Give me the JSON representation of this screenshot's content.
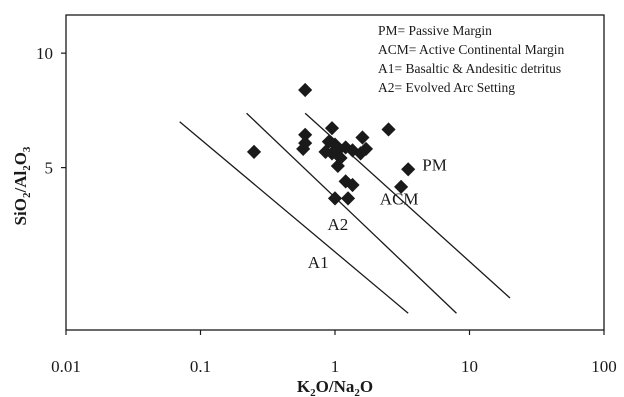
{
  "chart_data": {
    "type": "scatter",
    "title": "",
    "xlabel": {
      "k": "K",
      "sub1": "2",
      "o": "O/Na",
      "sub2": "2",
      "o2": "O"
    },
    "ylabel": {
      "si": "SiO",
      "sub1": "2",
      "al": "/Al",
      "sub2": "2",
      "o": "O",
      "sub3": "3"
    },
    "x_scale": "log",
    "y_scale": "log",
    "xlim": [
      0.01,
      100
    ],
    "ylim": [
      1.87,
      12.6
    ],
    "x_ticks": [
      {
        "value": 0.01,
        "label": "0.01"
      },
      {
        "value": 0.1,
        "label": "0.1"
      },
      {
        "value": 1,
        "label": "1"
      },
      {
        "value": 10,
        "label": "10"
      },
      {
        "value": 100,
        "label": "100"
      }
    ],
    "y_ticks": [
      {
        "value": 5,
        "label": "5"
      },
      {
        "value": 10,
        "label": "10"
      }
    ],
    "legend": [
      "PM= Passive Margin",
      "ACM= Active Continental Margin",
      "A1= Basaltic & Andesitic detritus",
      "A2= Evolved Arc Setting"
    ],
    "legend_position": "top-right",
    "marker_color": "#1a1a1a",
    "line_color": "#1a1a1a",
    "boundaries": [
      {
        "from": [
          0.07,
          6.6
        ],
        "to": [
          3.5,
          2.07
        ]
      },
      {
        "from": [
          0.22,
          6.95
        ],
        "to": [
          8,
          2.07
        ]
      },
      {
        "from": [
          0.6,
          6.95
        ],
        "to": [
          20,
          2.27
        ]
      }
    ],
    "field_labels": [
      {
        "text": "A1",
        "x": 0.75,
        "y": 2.82
      },
      {
        "text": "A2",
        "x": 1.05,
        "y": 3.55
      },
      {
        "text": "ACM",
        "x": 3.0,
        "y": 4.15
      },
      {
        "text": "PM",
        "x": 5.5,
        "y": 5.1
      }
    ],
    "points": [
      {
        "x": 0.6,
        "y": 8.0
      },
      {
        "x": 0.25,
        "y": 5.5
      },
      {
        "x": 0.6,
        "y": 6.1
      },
      {
        "x": 0.6,
        "y": 5.8
      },
      {
        "x": 0.58,
        "y": 5.6
      },
      {
        "x": 0.95,
        "y": 6.35
      },
      {
        "x": 0.9,
        "y": 5.85
      },
      {
        "x": 0.85,
        "y": 5.5
      },
      {
        "x": 1.0,
        "y": 5.75
      },
      {
        "x": 1.05,
        "y": 5.55
      },
      {
        "x": 0.95,
        "y": 5.45
      },
      {
        "x": 1.1,
        "y": 5.3
      },
      {
        "x": 1.2,
        "y": 5.65
      },
      {
        "x": 1.35,
        "y": 5.55
      },
      {
        "x": 1.55,
        "y": 5.45
      },
      {
        "x": 1.7,
        "y": 5.6
      },
      {
        "x": 1.6,
        "y": 6.0
      },
      {
        "x": 2.5,
        "y": 6.3
      },
      {
        "x": 1.05,
        "y": 5.05
      },
      {
        "x": 1.2,
        "y": 4.6
      },
      {
        "x": 1.35,
        "y": 4.5
      },
      {
        "x": 1.0,
        "y": 4.15
      },
      {
        "x": 1.25,
        "y": 4.15
      },
      {
        "x": 3.5,
        "y": 4.95
      },
      {
        "x": 3.1,
        "y": 4.45
      }
    ]
  }
}
